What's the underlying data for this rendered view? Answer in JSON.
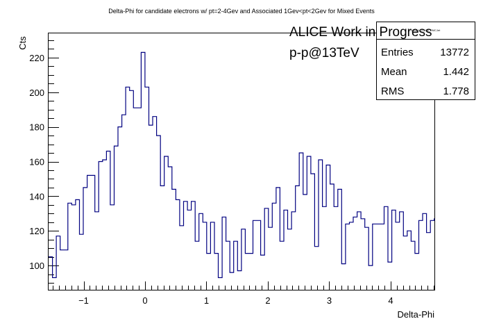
{
  "chart_data": {
    "type": "histogram",
    "title": "Delta-Phi for candidate electrons w/ pt=2-4Gev and Associated 1Gev<pt<2Gev for Mixed Events",
    "xlabel": "Delta-Phi",
    "ylabel": "Cts",
    "xlim": [
      -1.5708,
      4.7124
    ],
    "ylim": [
      86,
      234
    ],
    "x_ticks": [
      -1,
      0,
      1,
      2,
      3,
      4
    ],
    "y_ticks": [
      100,
      120,
      140,
      160,
      180,
      200,
      220
    ],
    "grid": false,
    "line_color": "#000080",
    "annotations": {
      "work_label": "ALICE Work in Progress",
      "system_label": "p-p@13TeV"
    },
    "stats_box": {
      "name": "DPhi_1_2_Mix_EMCJet",
      "rows": [
        {
          "label": "Entries",
          "value": "13772"
        },
        {
          "label": "Mean",
          "value": "1.442"
        },
        {
          "label": "RMS",
          "value": "1.778"
        }
      ]
    },
    "bins": {
      "x_start": -1.5708,
      "bin_width": 0.0628,
      "values": [
        105,
        93,
        117,
        109,
        109,
        136,
        135,
        138,
        118,
        145,
        152,
        152,
        131,
        160,
        161,
        166,
        135,
        169,
        180,
        187,
        203,
        201,
        191,
        191,
        223,
        203,
        181,
        186,
        175,
        146,
        163,
        157,
        144,
        138,
        123,
        137,
        132,
        137,
        114,
        130,
        125,
        107,
        125,
        107,
        93,
        128,
        114,
        96,
        114,
        97,
        121,
        107,
        107,
        126,
        126,
        106,
        133,
        122,
        136,
        145,
        114,
        132,
        121,
        131,
        146,
        165,
        141,
        163,
        153,
        111,
        161,
        134,
        158,
        147,
        134,
        144,
        101,
        124,
        125,
        128,
        131,
        127,
        122,
        100,
        124,
        124,
        124,
        134,
        102,
        132,
        125,
        131,
        117,
        120,
        114,
        107,
        126,
        130,
        119,
        126,
        127
      ]
    }
  }
}
